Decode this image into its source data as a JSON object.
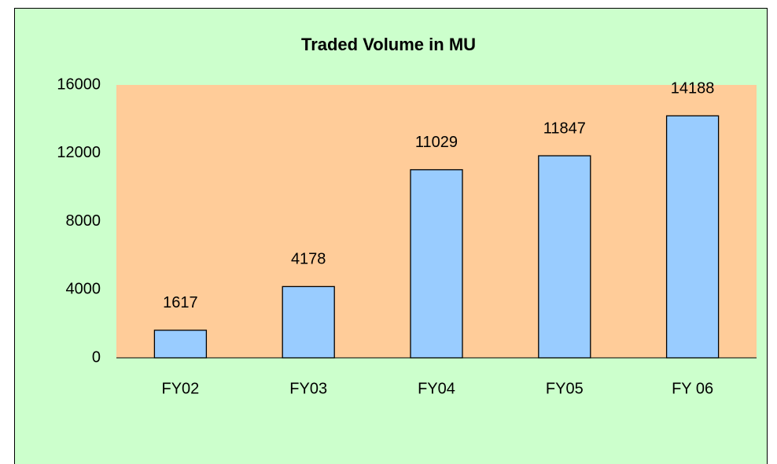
{
  "chart_data": {
    "type": "bar",
    "title": "Traded Volume in MU",
    "categories": [
      "FY02",
      "FY03",
      "FY04",
      "FY05",
      "FY 06"
    ],
    "values": [
      1617,
      4178,
      11029,
      11847,
      14188
    ],
    "color": "#99ccff",
    "ylim": [
      0,
      16000
    ],
    "yticks": [
      0,
      4000,
      8000,
      12000,
      16000
    ]
  }
}
